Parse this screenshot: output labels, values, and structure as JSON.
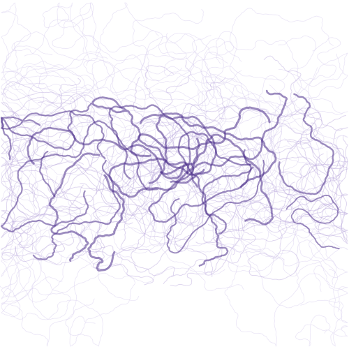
{
  "artwork": {
    "background": "#ffffff",
    "palette": {
      "ink": "#4b2e8a",
      "ink_light": "#b8a6dc",
      "ink_faint": "#d9cfee"
    },
    "style": "flowing wandering line trails"
  }
}
